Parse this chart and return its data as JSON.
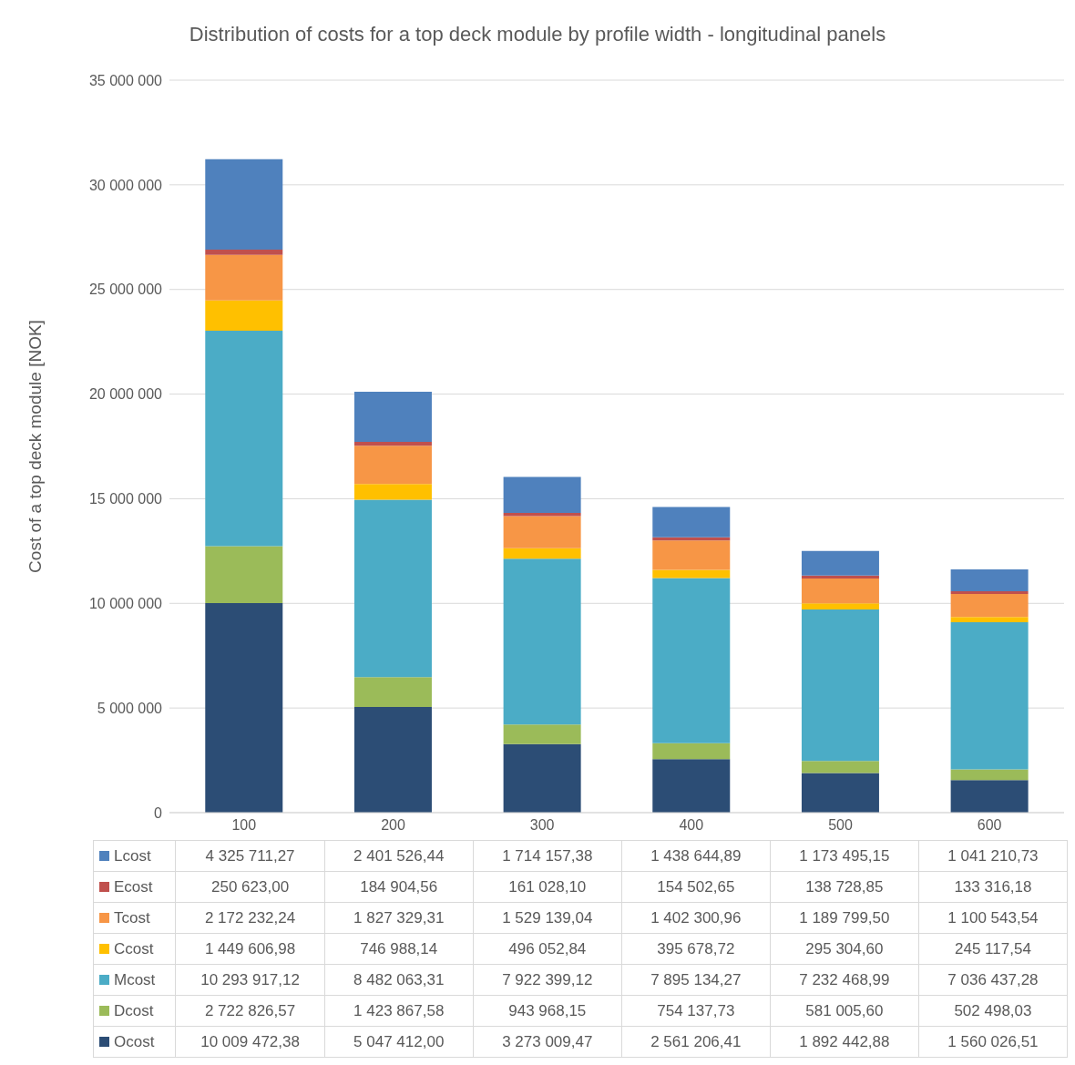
{
  "chart_data": {
    "type": "bar",
    "title": "Distribution of costs for a top deck module by profile width - longitudinal panels",
    "ylabel": "Cost of a top deck module [NOK]",
    "categories": [
      "100",
      "200",
      "300",
      "400",
      "500",
      "600"
    ],
    "stacked": true,
    "grid": "y",
    "legend": "bottom",
    "ylim": [
      0,
      35000000
    ],
    "yticks": [
      0,
      {
        "value": 5000000,
        "label": "5 000 000"
      },
      {
        "value": 10000000,
        "label": "10 000 000"
      },
      {
        "value": 15000000,
        "label": "15 000 000"
      },
      {
        "value": 20000000,
        "label": "20 000 000"
      },
      {
        "value": 25000000,
        "label": "25 000 000"
      },
      {
        "value": 30000000,
        "label": "30 000 000"
      },
      {
        "value": 35000000,
        "label": "35 000 000"
      }
    ],
    "series": [
      {
        "name": "Ocost",
        "color": "#2c4d75",
        "values": [
          10009472.38,
          5047412.0,
          3273009.47,
          2561206.41,
          1892442.88,
          1560026.51
        ],
        "value_labels": [
          "10 009 472,38",
          "5 047 412,00",
          "3 273 009,47",
          "2 561 206,41",
          "1 892 442,88",
          "1 560 026,51"
        ]
      },
      {
        "name": "Dcost",
        "color": "#9bbb59",
        "values": [
          2722826.57,
          1423867.58,
          943968.15,
          754137.73,
          581005.6,
          502498.03
        ],
        "value_labels": [
          "2 722 826,57",
          "1 423 867,58",
          "943 968,15",
          "754 137,73",
          "581 005,60",
          "502 498,03"
        ]
      },
      {
        "name": "Mcost",
        "color": "#4bacc6",
        "values": [
          10293917.12,
          8482063.31,
          7922399.12,
          7895134.27,
          7232468.99,
          7036437.28
        ],
        "value_labels": [
          "10 293 917,12",
          "8 482 063,31",
          "7 922 399,12",
          "7 895 134,27",
          "7 232 468,99",
          "7 036 437,28"
        ]
      },
      {
        "name": "Ccost",
        "color": "#ffc000",
        "values": [
          1449606.98,
          746988.14,
          496052.84,
          395678.72,
          295304.6,
          245117.54
        ],
        "value_labels": [
          "1 449 606,98",
          "746 988,14",
          "496 052,84",
          "395 678,72",
          "295 304,60",
          "245 117,54"
        ]
      },
      {
        "name": "Tcost",
        "color": "#f79646",
        "values": [
          2172232.24,
          1827329.31,
          1529139.04,
          1402300.96,
          1189799.5,
          1100543.54
        ],
        "value_labels": [
          "2 172 232,24",
          "1 827 329,31",
          "1 529 139,04",
          "1 402 300,96",
          "1 189 799,50",
          "1 100 543,54"
        ]
      },
      {
        "name": "Ecost",
        "color": "#c0504d",
        "values": [
          250623.0,
          184904.56,
          161028.1,
          154502.65,
          138728.85,
          133316.18
        ],
        "value_labels": [
          "250 623,00",
          "184 904,56",
          "161 028,10",
          "154 502,65",
          "138 728,85",
          "133 316,18"
        ]
      },
      {
        "name": "Lcost",
        "color": "#4f81bd",
        "values": [
          4325711.27,
          2401526.44,
          1714157.38,
          1438644.89,
          1173495.15,
          1041210.73
        ],
        "value_labels": [
          "4 325 711,27",
          "2 401 526,44",
          "1 714 157,38",
          "1 438 644,89",
          "1 173 495,15",
          "1 041 210,73"
        ]
      }
    ]
  }
}
